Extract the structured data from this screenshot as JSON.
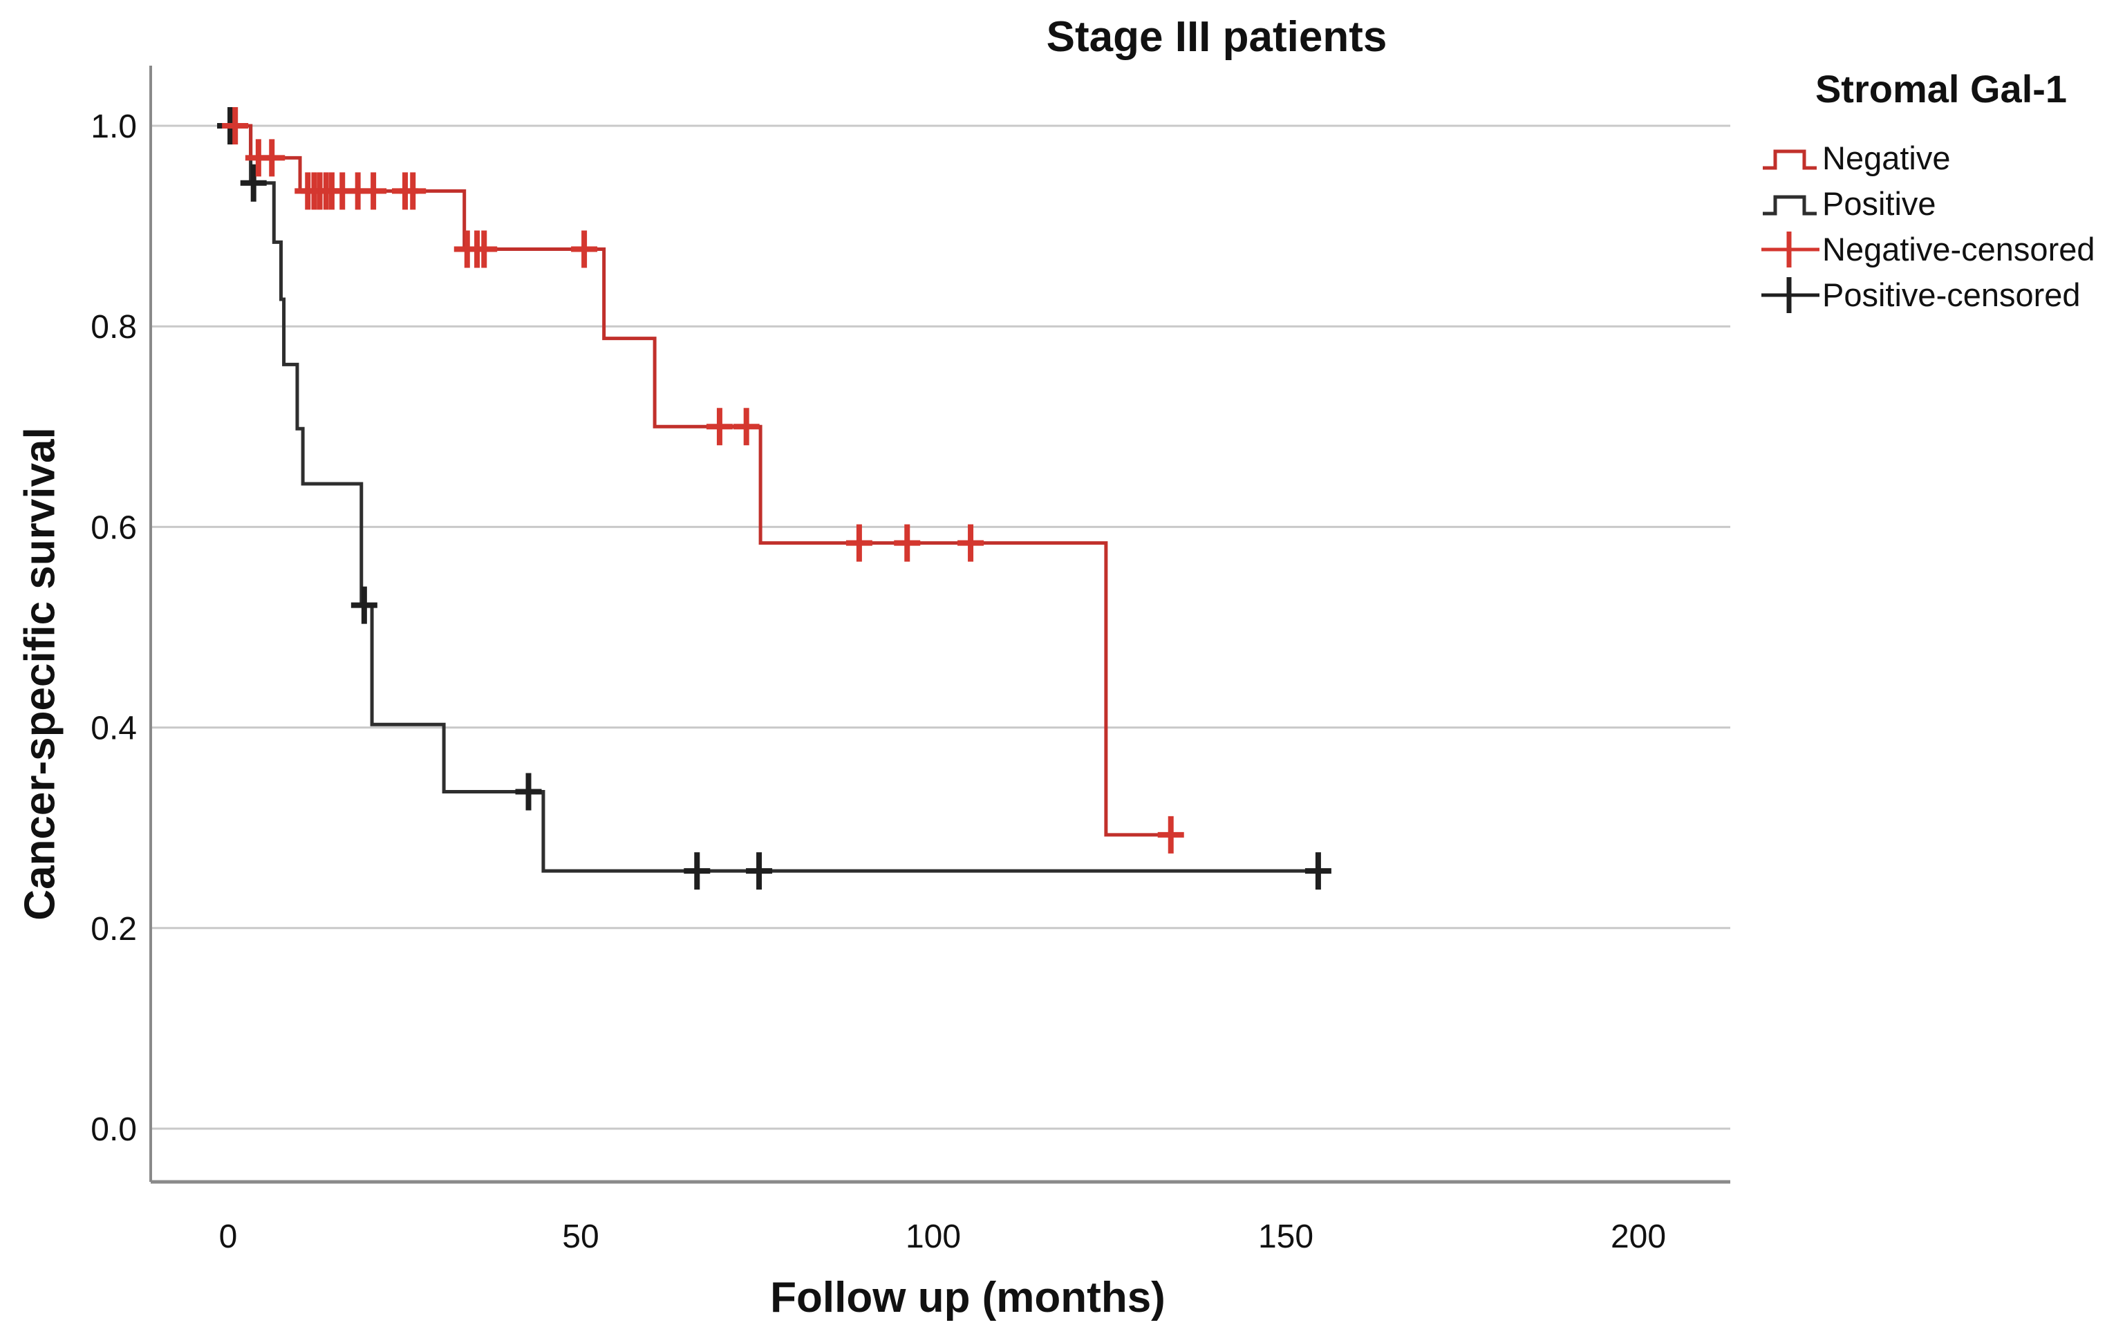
{
  "figure": {
    "title": "Stage III patients",
    "x_axis_label": "Follow up (months)",
    "y_axis_label": "Cancer-specific survival"
  },
  "legend": {
    "title": "Stromal Gal-1",
    "entries": [
      {
        "label": "Negative",
        "symbol": "step-line",
        "color": "#c1302b"
      },
      {
        "label": "Positive",
        "symbol": "step-line",
        "color": "#2e2e2e"
      },
      {
        "label": "Negative-censored",
        "symbol": "censor-plus",
        "color": "#d4372f"
      },
      {
        "label": "Positive-censored",
        "symbol": "censor-plus",
        "color": "#1f1f1f"
      }
    ]
  },
  "chart_data": {
    "type": "line",
    "variant": "kaplan_meier_step",
    "title": "Stage III patients",
    "xlabel": "Follow up (months)",
    "ylabel": "Cancer-specific survival",
    "xlim": [
      -11,
      213
    ],
    "ylim": [
      -0.05,
      1.05
    ],
    "xticks": [
      0,
      50,
      100,
      150,
      200
    ],
    "yticks": [
      0.0,
      0.2,
      0.4,
      0.6,
      0.8,
      1.0
    ],
    "grid": "horizontal",
    "legend_position": "right",
    "colors": {
      "grid": "#c9c9c9",
      "axis": "#8a8a8a",
      "text": "#111111"
    },
    "series": [
      {
        "name": "Negative",
        "color": "#c1302b",
        "censor_color": "#d4372f",
        "points": [
          [
            0,
            1.0
          ],
          [
            3.2,
            0.968
          ],
          [
            10.2,
            0.935
          ],
          [
            33.5,
            0.877
          ],
          [
            53.3,
            0.788
          ],
          [
            60.5,
            0.7
          ],
          [
            75.5,
            0.584
          ],
          [
            124.5,
            0.293
          ],
          [
            135.2,
            0.293
          ]
        ],
        "censors": [
          [
            1.0,
            1.0
          ],
          [
            4.3,
            0.968
          ],
          [
            6.2,
            0.968
          ],
          [
            11.3,
            0.935
          ],
          [
            12.2,
            0.935
          ],
          [
            13.0,
            0.935
          ],
          [
            13.9,
            0.935
          ],
          [
            14.7,
            0.935
          ],
          [
            16.2,
            0.935
          ],
          [
            18.4,
            0.935
          ],
          [
            20.6,
            0.935
          ],
          [
            25.1,
            0.935
          ],
          [
            26.2,
            0.935
          ],
          [
            33.9,
            0.877
          ],
          [
            35.3,
            0.877
          ],
          [
            36.3,
            0.877
          ],
          [
            50.5,
            0.877
          ],
          [
            69.7,
            0.7
          ],
          [
            73.5,
            0.7
          ],
          [
            89.5,
            0.584
          ],
          [
            96.3,
            0.584
          ],
          [
            105.3,
            0.584
          ],
          [
            133.7,
            0.293
          ]
        ]
      },
      {
        "name": "Positive",
        "color": "#2e2e2e",
        "censor_color": "#1f1f1f",
        "points": [
          [
            0,
            1.0
          ],
          [
            3.2,
            0.943
          ],
          [
            6.5,
            0.884
          ],
          [
            7.5,
            0.827
          ],
          [
            7.9,
            0.762
          ],
          [
            9.8,
            0.698
          ],
          [
            10.6,
            0.643
          ],
          [
            18.9,
            0.522
          ],
          [
            20.4,
            0.403
          ],
          [
            30.6,
            0.336
          ],
          [
            44.7,
            0.257
          ],
          [
            154.6,
            0.257
          ]
        ],
        "censors": [
          [
            0.3,
            1.0
          ],
          [
            3.6,
            0.943
          ],
          [
            19.3,
            0.522
          ],
          [
            42.6,
            0.336
          ],
          [
            66.5,
            0.257
          ],
          [
            75.3,
            0.257
          ],
          [
            154.6,
            0.257
          ]
        ]
      }
    ]
  }
}
